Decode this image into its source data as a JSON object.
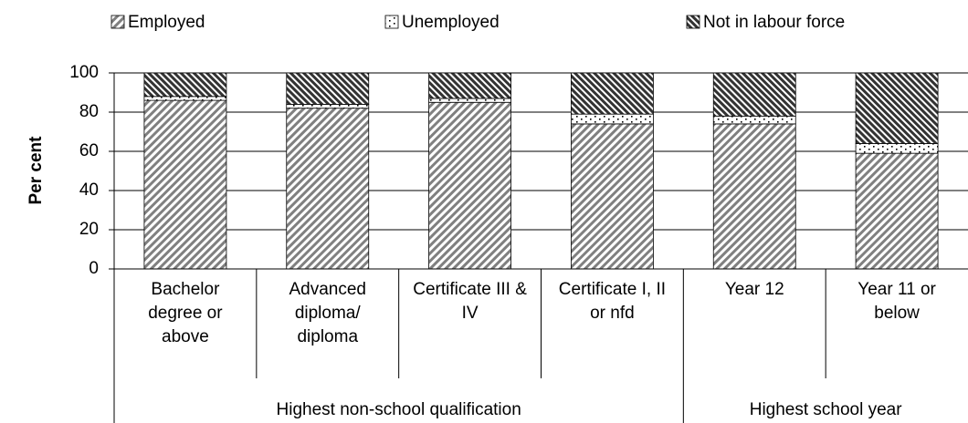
{
  "chart_data": {
    "type": "stacked-bar",
    "y_label": "Per cent",
    "category_groups": [
      {
        "name": "Highest non-school qualification",
        "categories": [
          "Bachelor degree or above",
          "Advanced diploma/ diploma",
          "Certificate III & IV",
          "Certificate I, II or nfd"
        ]
      },
      {
        "name": "Highest school year",
        "categories": [
          "Year 12",
          "Year 11 or below"
        ]
      }
    ],
    "series": [
      {
        "name": "Employed",
        "color": "#808080",
        "values": [
          86,
          82,
          85,
          74,
          74,
          59
        ]
      },
      {
        "name": "Unemployed",
        "color": "#000000",
        "values": [
          2,
          2,
          2,
          5,
          4,
          5
        ]
      },
      {
        "name": "Not in labour force",
        "color": "#333333",
        "values": [
          12,
          16,
          13,
          21,
          22,
          36
        ]
      }
    ],
    "ylim": [
      0,
      100
    ],
    "yticks": [
      0,
      20,
      40,
      60,
      80,
      100
    ],
    "grid": true
  }
}
